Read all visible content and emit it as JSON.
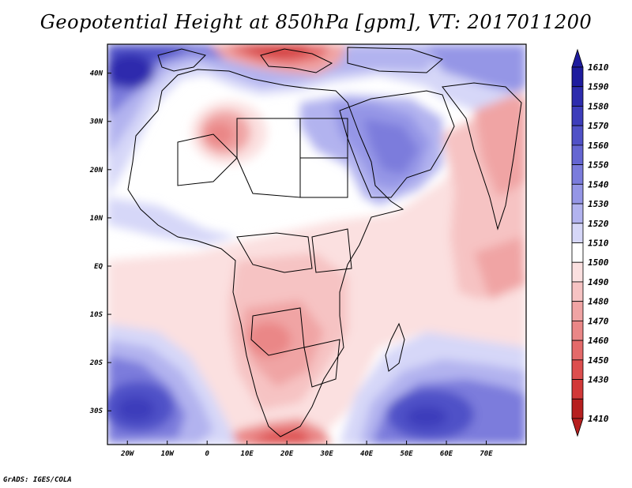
{
  "title": "Geopotential Height at 850hPa [gpm], VT: 2017011200",
  "credit": "GrADS: IGES/COLA",
  "map": {
    "lon_range": [
      -25,
      80
    ],
    "lat_range": [
      -37,
      46
    ],
    "lon_ticks": [
      {
        "value": -20,
        "label": "20W"
      },
      {
        "value": -10,
        "label": "10W"
      },
      {
        "value": 0,
        "label": "0"
      },
      {
        "value": 10,
        "label": "10E"
      },
      {
        "value": 20,
        "label": "20E"
      },
      {
        "value": 30,
        "label": "30E"
      },
      {
        "value": 40,
        "label": "40E"
      },
      {
        "value": 50,
        "label": "50E"
      },
      {
        "value": 60,
        "label": "60E"
      },
      {
        "value": 70,
        "label": "70E"
      }
    ],
    "lat_ticks": [
      {
        "value": 40,
        "label": "40N"
      },
      {
        "value": 30,
        "label": "30N"
      },
      {
        "value": 20,
        "label": "20N"
      },
      {
        "value": 10,
        "label": "10N"
      },
      {
        "value": 0,
        "label": "EQ"
      },
      {
        "value": -10,
        "label": "10S"
      },
      {
        "value": -20,
        "label": "20S"
      },
      {
        "value": -30,
        "label": "30S"
      }
    ]
  },
  "colorbar": {
    "levels": [
      {
        "label": "1610",
        "color": "#1e1c9e"
      },
      {
        "label": "1590",
        "color": "#2d2cad"
      },
      {
        "label": "1580",
        "color": "#3d3dbb"
      },
      {
        "label": "1570",
        "color": "#5051c7"
      },
      {
        "label": "1560",
        "color": "#6566d2"
      },
      {
        "label": "1550",
        "color": "#7b7cdc"
      },
      {
        "label": "1540",
        "color": "#9596e6"
      },
      {
        "label": "1530",
        "color": "#b2b3ef"
      },
      {
        "label": "1520",
        "color": "#d6d7f8"
      },
      {
        "label": "1510",
        "color": "#ffffff"
      },
      {
        "label": "1500",
        "color": "#fbe0e0"
      },
      {
        "label": "1490",
        "color": "#f6c3c3"
      },
      {
        "label": "1480",
        "color": "#f0a4a4"
      },
      {
        "label": "1470",
        "color": "#ea8787"
      },
      {
        "label": "1460",
        "color": "#e46a6a"
      },
      {
        "label": "1450",
        "color": "#dd4e4e"
      },
      {
        "label": "1430",
        "color": "#d23838"
      },
      {
        "label": "1410",
        "color": "#b61f1f"
      }
    ]
  }
}
